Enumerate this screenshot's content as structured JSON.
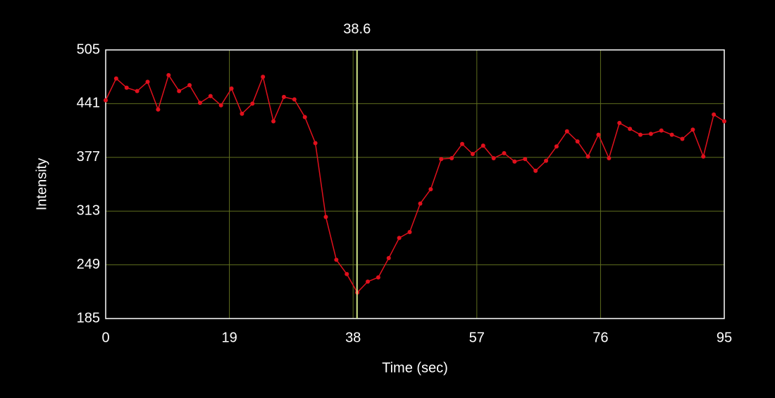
{
  "chart_data": {
    "type": "line",
    "xlabel": "Time (sec)",
    "ylabel": "Intensity",
    "x": [
      0,
      1.61,
      3.22,
      4.83,
      6.44,
      8.05,
      9.66,
      11.27,
      12.88,
      14.49,
      16.1,
      17.71,
      19.32,
      20.93,
      22.54,
      24.15,
      25.76,
      27.37,
      28.98,
      30.59,
      32.2,
      33.81,
      35.42,
      37.03,
      38.64,
      40.25,
      41.86,
      43.47,
      45.08,
      46.69,
      48.31,
      49.92,
      51.53,
      53.14,
      54.75,
      56.36,
      57.97,
      59.58,
      61.19,
      62.8,
      64.41,
      66.02,
      67.63,
      69.24,
      70.85,
      72.46,
      74.07,
      75.68,
      77.29,
      78.9,
      80.51,
      82.12,
      83.73,
      85.34,
      86.95,
      88.56,
      90.17,
      91.78,
      93.39,
      95
    ],
    "series": [
      {
        "color": "#e0101c",
        "values": [
          445,
          471,
          460,
          456,
          467,
          434,
          475,
          456,
          463,
          442,
          450,
          439,
          459,
          429,
          441,
          473,
          420,
          449,
          446,
          425,
          394,
          306,
          255,
          238,
          216,
          229,
          234,
          257,
          281,
          288,
          322,
          339,
          375,
          376,
          393,
          381,
          391,
          376,
          382,
          372,
          375,
          361,
          373,
          390,
          408,
          396,
          378,
          404,
          376,
          418,
          411,
          404,
          405,
          409,
          404,
          399,
          410,
          378,
          428,
          420
        ]
      }
    ],
    "xlim": [
      0,
      95
    ],
    "xticks": [
      0,
      19,
      38,
      57,
      76,
      95
    ],
    "ylim": [
      185,
      505
    ],
    "yticks": [
      185,
      249,
      313,
      377,
      441,
      505
    ],
    "grid": true,
    "grid_color": "#5f6e1e",
    "cursor": 38.6,
    "cursor_color": "#d4e88a"
  }
}
